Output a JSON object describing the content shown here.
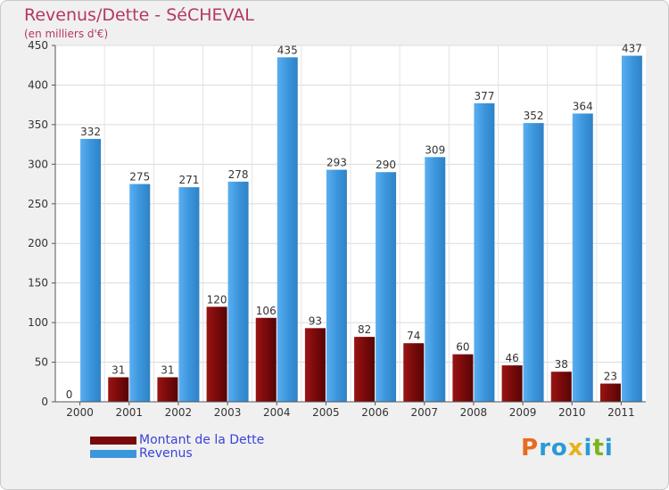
{
  "title": "Revenus/Dette - SéCHEVAL",
  "subtitle": "(en milliers d'€)",
  "logo": [
    "P",
    "r",
    "o",
    "x",
    "i",
    "t",
    "i"
  ],
  "colors": {
    "dette": "#7a0a0a",
    "revenus": "#3c96dc",
    "title": "#b5385f",
    "legend_text": "#3b44d6",
    "logo": [
      "#e86a1e",
      "#2a9ad6",
      "#2a9ad6",
      "#e8b21e",
      "#2a9ad6",
      "#7ab51d",
      "#2a9ad6"
    ]
  },
  "legend": [
    {
      "label": "Montant de la Dette",
      "color": "#7a0a0a"
    },
    {
      "label": "Revenus",
      "color": "#3c96dc"
    }
  ],
  "chart_data": {
    "type": "bar",
    "categories": [
      "2000",
      "2001",
      "2002",
      "2003",
      "2004",
      "2005",
      "2006",
      "2007",
      "2008",
      "2009",
      "2010",
      "2011"
    ],
    "series": [
      {
        "name": "Montant de la Dette",
        "values": [
          0,
          31,
          31,
          120,
          106,
          93,
          82,
          74,
          60,
          46,
          38,
          23
        ]
      },
      {
        "name": "Revenus",
        "values": [
          332,
          275,
          271,
          278,
          435,
          293,
          290,
          309,
          377,
          352,
          364,
          437
        ]
      }
    ],
    "ylim": [
      0,
      450
    ],
    "yticks": [
      0,
      50,
      100,
      150,
      200,
      250,
      300,
      350,
      400,
      450
    ],
    "grid": true,
    "legend_position": "bottom-left"
  }
}
